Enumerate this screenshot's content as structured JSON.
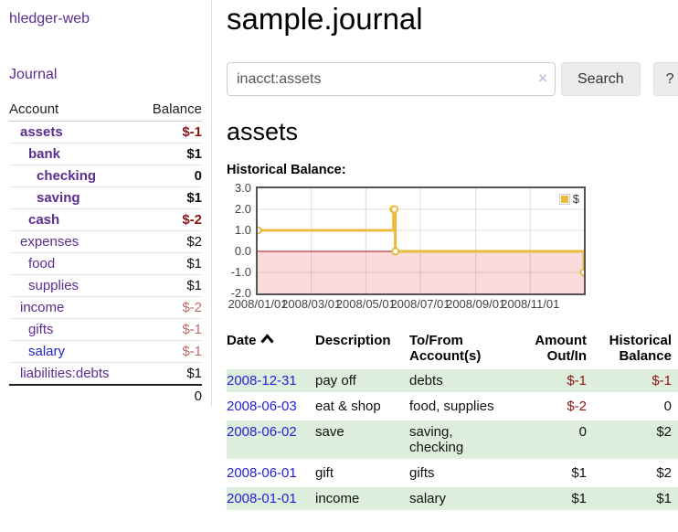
{
  "sidebar": {
    "app_title": "hledger-web",
    "nav": {
      "journal_label": "Journal"
    },
    "accounts_table": {
      "headers": {
        "account": "Account",
        "balance": "Balance"
      },
      "rows": [
        {
          "name": "assets",
          "balance": "$-1"
        },
        {
          "name": "bank",
          "balance": "$1"
        },
        {
          "name": "checking",
          "balance": "0"
        },
        {
          "name": "saving",
          "balance": "$1"
        },
        {
          "name": "cash",
          "balance": "$-2"
        },
        {
          "name": "expenses",
          "balance": "$2"
        },
        {
          "name": "food",
          "balance": "$1"
        },
        {
          "name": "supplies",
          "balance": "$1"
        },
        {
          "name": "income",
          "balance": "$-2"
        },
        {
          "name": "gifts",
          "balance": "$-1"
        },
        {
          "name": "salary",
          "balance": "$-1"
        },
        {
          "name": "liabilities:debts",
          "balance": "$1"
        }
      ],
      "total": "0"
    }
  },
  "header": {
    "title": "sample.journal"
  },
  "search": {
    "value": "inacct:assets",
    "clear_icon": "×",
    "button_label": "Search",
    "help_label": "?"
  },
  "account_page": {
    "heading": "assets",
    "chart_label": "Historical Balance:"
  },
  "chart_data": {
    "type": "line",
    "title": "Historical Balance:",
    "step": true,
    "series": [
      {
        "name": "$",
        "color": "#e8bb3d",
        "points": [
          [
            "2008-01-01",
            1
          ],
          [
            "2008-06-01",
            2
          ],
          [
            "2008-06-02",
            2
          ],
          [
            "2008-06-03",
            0
          ],
          [
            "2008-12-31",
            -1
          ]
        ]
      }
    ],
    "x_ticks": [
      "2008/01/01",
      "2008/03/01",
      "2008/05/01",
      "2008/07/01",
      "2008/09/01",
      "2008/11/01"
    ],
    "y_ticks": [
      3.0,
      2.0,
      1.0,
      0.0,
      -1.0,
      -2.0
    ],
    "xlim": [
      "2008-01-01",
      "2008-12-31"
    ],
    "ylim": [
      -2,
      3
    ],
    "grid": true,
    "legend": {
      "label": "$",
      "position": "top-right"
    },
    "colors": {
      "negative_region": "#fbdada",
      "zero_line": "#a61111",
      "gridline": "rgba(110,110,110,0.22)"
    }
  },
  "register_table": {
    "headers": {
      "date": "Date",
      "description": "Description",
      "tofrom_line1": "To/From",
      "tofrom_line2": "Account(s)",
      "amount_line1": "Amount",
      "amount_line2": "Out/In",
      "hist_line1": "Historical",
      "hist_line2": "Balance"
    },
    "rows": [
      {
        "date": "2008-12-31",
        "description": "pay off",
        "accounts": "debts",
        "amount": "$-1",
        "balance": "$-1"
      },
      {
        "date": "2008-06-03",
        "description": "eat & shop",
        "accounts": "food, supplies",
        "amount": "$-2",
        "balance": "0"
      },
      {
        "date": "2008-06-02",
        "description": "save",
        "accounts": "saving, checking",
        "amount": "0",
        "balance": "$2"
      },
      {
        "date": "2008-06-01",
        "description": "gift",
        "accounts": "gifts",
        "amount": "$1",
        "balance": "$2"
      },
      {
        "date": "2008-01-01",
        "description": "income",
        "accounts": "salary",
        "amount": "$1",
        "balance": "$1"
      }
    ]
  }
}
